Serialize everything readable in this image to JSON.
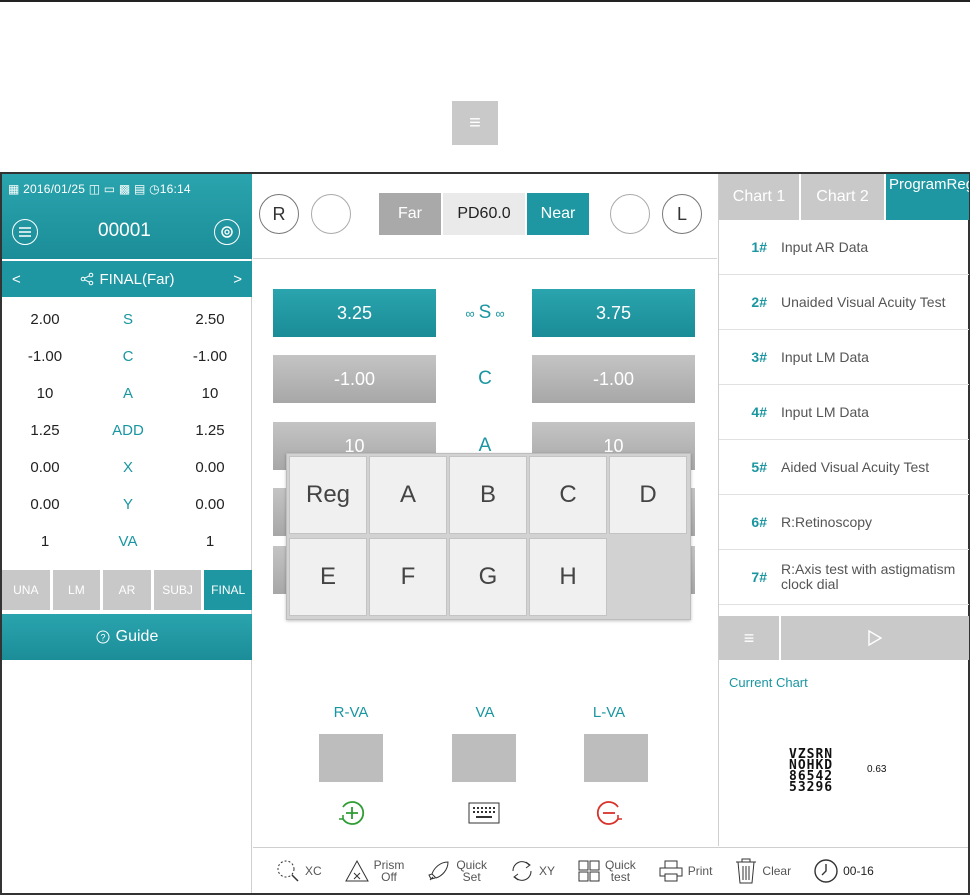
{
  "left": {
    "status": {
      "date": "2016/01/25",
      "time": "16:14"
    },
    "patient_no": "00001",
    "mode_title": "FINAL(Far)",
    "rows": [
      {
        "right": "2.00",
        "label": "S",
        "left": "2.50"
      },
      {
        "right": "-1.00",
        "label": "C",
        "left": "-1.00"
      },
      {
        "right": "10",
        "label": "A",
        "left": "10"
      },
      {
        "right": "1.25",
        "label": "ADD",
        "left": "1.25"
      },
      {
        "right": "0.00",
        "label": "X",
        "left": "0.00"
      },
      {
        "right": "0.00",
        "label": "Y",
        "left": "0.00"
      },
      {
        "right": "1",
        "label": "VA",
        "left": "1"
      }
    ],
    "tabs": [
      "UNA",
      "LM",
      "AR",
      "SUBJ",
      "FINAL"
    ],
    "active_tab": "FINAL",
    "guide_label": "Guide"
  },
  "middle": {
    "eye_right": "R",
    "eye_left": "L",
    "far_label": "Far",
    "pd_label": "PD60.0",
    "near_label": "Near",
    "s_label": "S",
    "c_label": "C",
    "a_label": "A",
    "s_right": "3.25",
    "s_left": "3.75",
    "c_right": "-1.00",
    "c_left": "-1.00",
    "a_right": "10",
    "a_left": "10",
    "keys": [
      "Reg",
      "A",
      "B",
      "C",
      "D",
      "E",
      "F",
      "G",
      "H"
    ],
    "r_va_label": "R-VA",
    "va_label": "VA",
    "l_va_label": "L-VA"
  },
  "right": {
    "tabs": [
      "Chart 1",
      "Chart 2",
      "ProgramReg"
    ],
    "active_tab": "ProgramReg",
    "program": [
      {
        "num": "1#",
        "text": "Input AR Data"
      },
      {
        "num": "2#",
        "text": "Unaided Visual Acuity Test"
      },
      {
        "num": "3#",
        "text": "Input LM Data"
      },
      {
        "num": "4#",
        "text": "Input LM Data"
      },
      {
        "num": "5#",
        "text": "Aided Visual Acuity Test"
      },
      {
        "num": "6#",
        "text": "R:Retinoscopy"
      },
      {
        "num": "7#",
        "text": "R:Axis test with astigmatism clock dial"
      }
    ],
    "current_chart_label": "Current Chart",
    "optotype_lines": [
      "VZSRN",
      "NOHKD",
      "86542",
      "53296"
    ],
    "optotype_level": "0.63"
  },
  "bottom": {
    "xc": "XC",
    "prism": [
      "Prism",
      "Off"
    ],
    "quick_set": [
      "Quick",
      "Set"
    ],
    "xy": "XY",
    "quick_test": [
      "Quick",
      "test"
    ],
    "print": "Print",
    "clear": "Clear",
    "timer": "00-16"
  },
  "colors": {
    "teal": "#1e97a2",
    "gray_button": "#c9c9c9",
    "plus_green": "#2e9d34",
    "minus_red": "#d9312b"
  }
}
